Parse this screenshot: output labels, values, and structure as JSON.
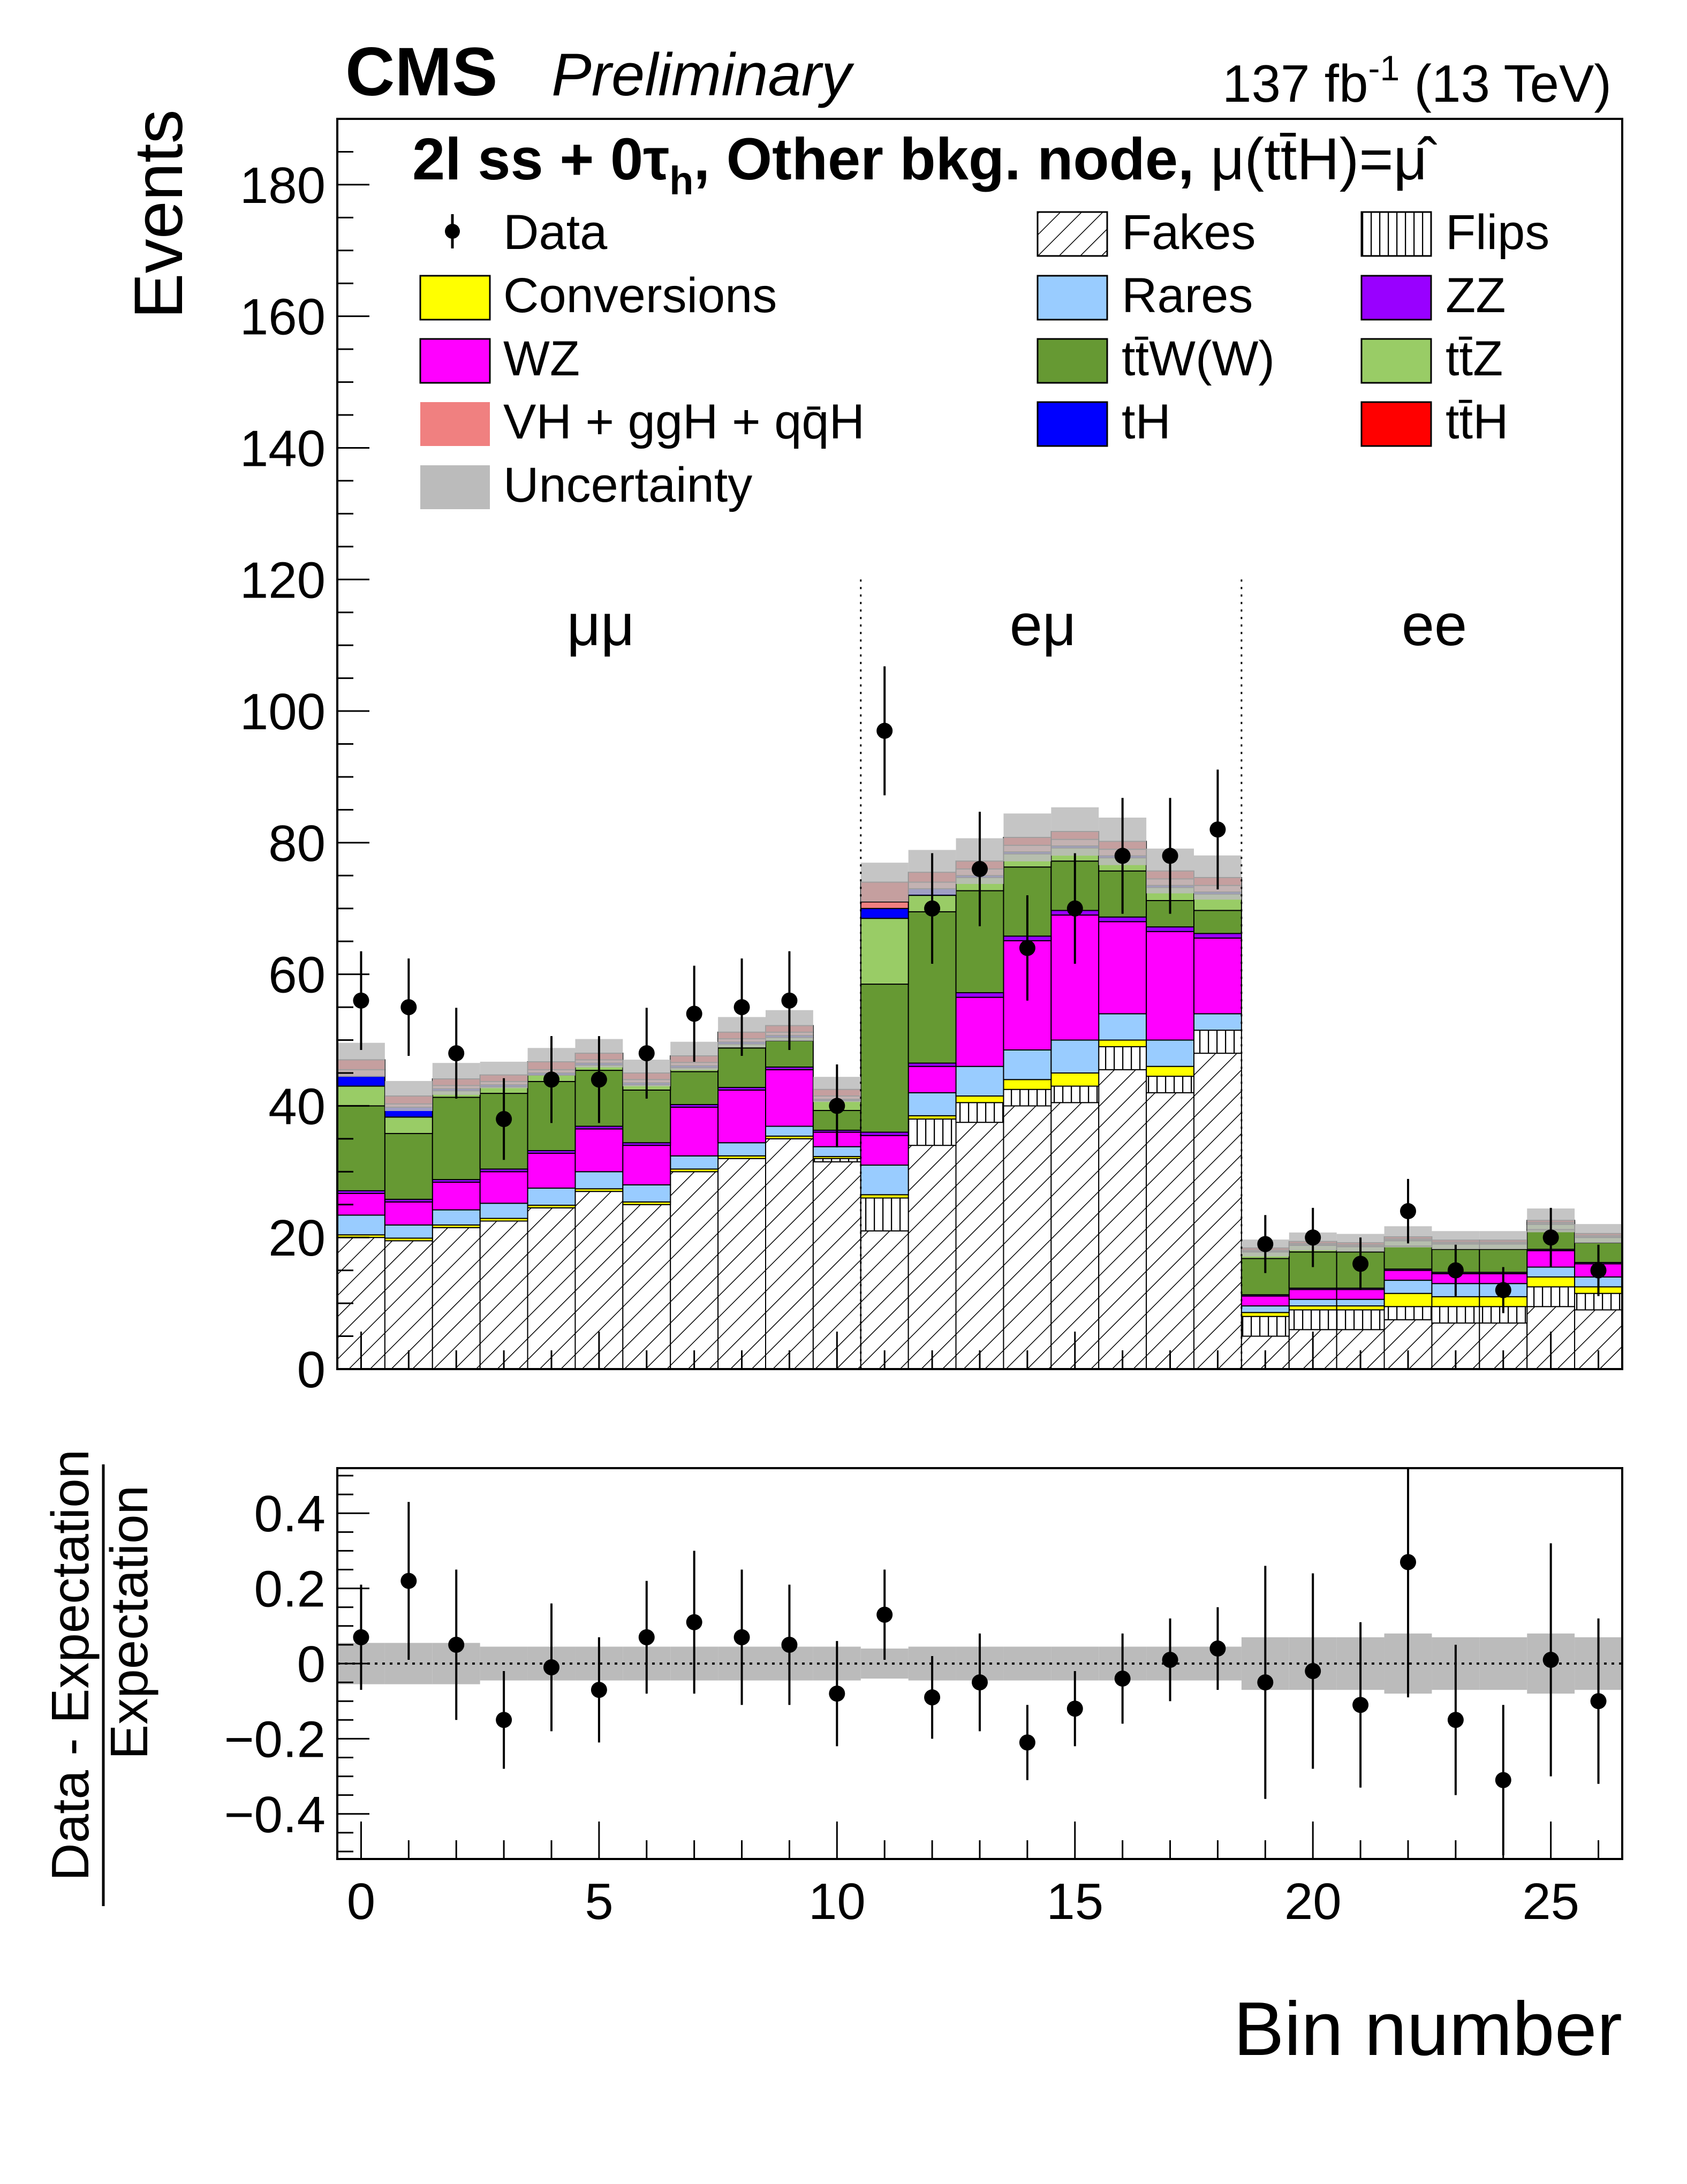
{
  "header": {
    "experiment": "CMS",
    "status": "Preliminary",
    "lumi": "137 fb",
    "lumi_sup": "-1",
    "energy": " (13 TeV)"
  },
  "chart_data": {
    "type": "bar",
    "subtype": "stacked-histogram-with-ratio",
    "title_parts": {
      "a": "2l ss + 0τ",
      "b": "h",
      "c": ", Other bkg. node, ",
      "d": "μ(tt̄H)=μ̂"
    },
    "xlabel": "Bin number",
    "ylabel": "Events",
    "ratio_ylabel_num": "Data - Expectation",
    "ratio_ylabel_den": "Expectation",
    "xlim": [
      -0.5,
      26.5
    ],
    "ylim": [
      0,
      190
    ],
    "ratio_ylim": [
      -0.52,
      0.52
    ],
    "x_ticks": [
      0,
      5,
      10,
      15,
      20,
      25
    ],
    "y_ticks": [
      0,
      20,
      40,
      60,
      80,
      100,
      120,
      140,
      160,
      180
    ],
    "ratio_ticks": [
      0.4,
      0.2,
      0,
      -0.2,
      -0.4
    ],
    "ratio_tick_labels": [
      "0.4",
      "0.2",
      "0",
      "−0.2",
      "−0.4"
    ],
    "regions": [
      {
        "label": "μμ",
        "from": -0.5,
        "to": 10.5
      },
      {
        "label": "eμ",
        "from": 10.5,
        "to": 18.5
      },
      {
        "label": "ee",
        "from": 18.5,
        "to": 26.5
      }
    ],
    "region_boundaries": [
      10.5,
      18.5
    ],
    "categories": [
      0,
      1,
      2,
      3,
      4,
      5,
      6,
      7,
      8,
      9,
      10,
      11,
      12,
      13,
      14,
      15,
      16,
      17,
      18,
      19,
      20,
      21,
      22,
      23,
      24,
      25,
      26
    ],
    "stack": [
      {
        "name": "Fakes",
        "color": "#ffffff",
        "hatch": "diagonal",
        "values": [
          20.0,
          19.5,
          21.5,
          22.5,
          24.5,
          27.0,
          25.0,
          30.0,
          32.0,
          35.0,
          31.5,
          21.0,
          34.0,
          37.5,
          40.0,
          40.5,
          45.5,
          42.0,
          48.0,
          5.0,
          6.0,
          6.0,
          7.5,
          7.0,
          7.0,
          9.5,
          9.0
        ]
      },
      {
        "name": "Flips",
        "color": "#ffffff",
        "hatch": "vertical",
        "values": [
          0,
          0,
          0,
          0,
          0,
          0,
          0,
          0,
          0,
          0,
          0.5,
          5.0,
          4.0,
          3.0,
          2.5,
          2.5,
          3.5,
          2.5,
          3.5,
          3.0,
          3.0,
          3.0,
          2.0,
          2.5,
          2.5,
          3.0,
          2.5
        ]
      },
      {
        "name": "Conversions",
        "color": "#ffff00",
        "values": [
          0.4,
          0.4,
          0.4,
          0.4,
          0.4,
          0.4,
          0.4,
          0.4,
          0.4,
          0.4,
          0.3,
          0.5,
          0.5,
          1.0,
          1.5,
          2.0,
          1.0,
          1.5,
          0,
          0.6,
          0.6,
          0.6,
          2.0,
          1.5,
          1.5,
          1.5,
          1.0
        ]
      },
      {
        "name": "Rares",
        "color": "#99ccff",
        "values": [
          3.0,
          2.0,
          2.3,
          2.3,
          2.6,
          2.6,
          2.6,
          2.0,
          2.0,
          1.5,
          1.5,
          4.5,
          3.5,
          4.5,
          4.5,
          5.0,
          4.0,
          4.0,
          2.5,
          1.0,
          1.0,
          1.0,
          2.0,
          2.0,
          2.0,
          1.5,
          1.5
        ]
      },
      {
        "name": "WZ",
        "color": "#ff00ff",
        "values": [
          3.3,
          3.5,
          4.2,
          4.8,
          5.3,
          6.5,
          6.0,
          7.4,
          8.0,
          8.6,
          2.2,
          4.5,
          4.0,
          10.5,
          16.6,
          19.0,
          14.0,
          16.5,
          11.5,
          1.5,
          1.5,
          1.5,
          1.5,
          1.5,
          1.5,
          2.5,
          2.0
        ]
      },
      {
        "name": "ZZ",
        "color": "#9900ff",
        "values": [
          0.4,
          0.4,
          0.4,
          0.4,
          0.4,
          0.4,
          0.4,
          0.4,
          0.4,
          0.4,
          0.3,
          0.5,
          0.5,
          0.7,
          0.7,
          0.7,
          0.7,
          0.7,
          0.7,
          0.2,
          0.2,
          0.2,
          0.2,
          0.2,
          0.2,
          0.2,
          0.2
        ]
      },
      {
        "name": "tt̄W(W)",
        "color": "#669933",
        "values": [
          12.9,
          10.0,
          12.5,
          11.5,
          10.5,
          8.5,
          8.0,
          5.0,
          6.0,
          4.0,
          3.0,
          22.5,
          23.0,
          15.5,
          10.5,
          7.5,
          7.0,
          4.0,
          3.5,
          5.5,
          5.5,
          5.5,
          3.5,
          3.5,
          3.5,
          3.0,
          3.0
        ]
      },
      {
        "name": "tt̄Z",
        "color": "#99cc66",
        "values": [
          3.0,
          2.5,
          1.0,
          1.0,
          1.0,
          0.8,
          0.8,
          0.6,
          0.6,
          0.5,
          1.5,
          10.0,
          2.5,
          2.0,
          2.0,
          2.0,
          2.0,
          2.0,
          2.5,
          1.0,
          1.0,
          0.8,
          0.8,
          0.8,
          0.8,
          0.8,
          0.8
        ]
      },
      {
        "name": "tH",
        "color": "#0000ff",
        "values": [
          1.5,
          1.5,
          0.3,
          0.3,
          0.3,
          0.3,
          0.3,
          0.3,
          0.3,
          0.3,
          0.2,
          1.5,
          1.0,
          0.3,
          0.3,
          0.3,
          0.3,
          0.3,
          0.3,
          0.1,
          0.1,
          0.1,
          0.1,
          0.1,
          0.1,
          0.1,
          0.1
        ]
      },
      {
        "name": "VH + ggH + qq̄H",
        "color": "#f08080",
        "values": [
          1.0,
          0.5,
          0.5,
          0.5,
          0.5,
          0.5,
          0.5,
          0.5,
          0.5,
          0.5,
          0.5,
          1.0,
          1.0,
          1.0,
          1.0,
          1.0,
          1.0,
          1.0,
          1.0,
          0.2,
          0.2,
          0.2,
          0.2,
          0.2,
          0.2,
          0.2,
          0.2
        ]
      },
      {
        "name": "tt̄H",
        "color": "#ff0000",
        "values": [
          1.5,
          1.2,
          1.0,
          1.0,
          1.2,
          1.0,
          1.0,
          1.0,
          1.0,
          1.0,
          1.0,
          3.0,
          1.5,
          1.2,
          1.2,
          1.2,
          1.2,
          1.2,
          1.2,
          0.3,
          0.3,
          0.3,
          0.3,
          0.3,
          0.3,
          0.3,
          0.3
        ]
      }
    ],
    "uncertainty": {
      "name": "Uncertainty",
      "color": "#bbbbbb",
      "rel_values": [
        0.055,
        0.055,
        0.055,
        0.045,
        0.045,
        0.045,
        0.045,
        0.045,
        0.045,
        0.045,
        0.045,
        0.04,
        0.045,
        0.045,
        0.045,
        0.045,
        0.045,
        0.045,
        0.045,
        0.07,
        0.07,
        0.07,
        0.08,
        0.07,
        0.07,
        0.08,
        0.07
      ]
    },
    "data": {
      "name": "Data",
      "values": [
        56,
        55,
        48,
        38,
        44,
        44,
        48,
        54,
        55,
        56,
        40,
        97,
        70,
        76,
        64,
        70,
        78,
        78,
        82,
        19,
        20,
        16,
        24,
        15,
        12,
        20,
        15
      ],
      "errors": [
        7.5,
        7.4,
        6.9,
        6.2,
        6.6,
        6.6,
        6.9,
        7.3,
        7.4,
        7.5,
        6.3,
        9.8,
        8.4,
        8.7,
        8.0,
        8.4,
        8.8,
        8.8,
        9.1,
        4.4,
        4.5,
        4.0,
        4.9,
        3.9,
        3.5,
        4.5,
        3.9
      ]
    },
    "ratio": {
      "values": [
        0.07,
        0.22,
        0.05,
        -0.15,
        -0.01,
        -0.07,
        0.07,
        0.11,
        0.07,
        0.05,
        -0.08,
        0.13,
        -0.09,
        -0.05,
        -0.21,
        -0.12,
        -0.04,
        0.01,
        0.04,
        -0.05,
        -0.02,
        -0.11,
        0.27,
        -0.15,
        -0.31,
        0.01,
        -0.1
      ],
      "errors": [
        0.14,
        0.21,
        0.2,
        0.13,
        0.17,
        0.14,
        0.15,
        0.19,
        0.18,
        0.16,
        0.14,
        0.12,
        0.11,
        0.13,
        0.1,
        0.1,
        0.12,
        0.11,
        0.11,
        0.31,
        0.26,
        0.22,
        0.36,
        0.2,
        0.2,
        0.31,
        0.22
      ],
      "reference_line": 0
    }
  },
  "legend": [
    {
      "label": "Data",
      "kind": "marker"
    },
    {
      "label": "Fakes",
      "kind": "hatch-diagonal",
      "color": "#ffffff"
    },
    {
      "label": "Flips",
      "kind": "hatch-vertical",
      "color": "#ffffff"
    },
    {
      "label": "Conversions",
      "kind": "fill",
      "color": "#ffff00"
    },
    {
      "label": "Rares",
      "kind": "fill",
      "color": "#99ccff"
    },
    {
      "label": "ZZ",
      "kind": "fill",
      "color": "#9900ff"
    },
    {
      "label": "WZ",
      "kind": "fill",
      "color": "#ff00ff"
    },
    {
      "label": "tt̄W(W)",
      "kind": "fill",
      "color": "#669933"
    },
    {
      "label": "tt̄Z",
      "kind": "fill",
      "color": "#99cc66"
    },
    {
      "label": "VH + ggH + qq̄H",
      "kind": "fill",
      "color": "#f08080"
    },
    {
      "label": "tH",
      "kind": "fill",
      "color": "#0000ff"
    },
    {
      "label": "tt̄H",
      "kind": "fill",
      "color": "#ff0000"
    },
    {
      "label": "Uncertainty",
      "kind": "fill-noborder",
      "color": "#bbbbbb"
    }
  ]
}
